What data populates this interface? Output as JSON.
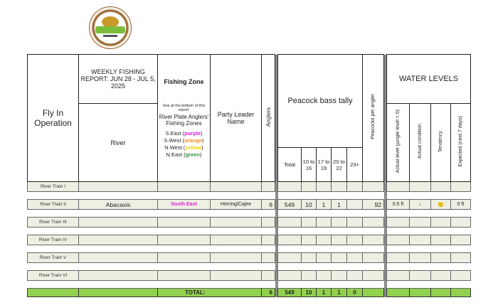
{
  "logo": {
    "text": "River Plate Anglers"
  },
  "header": {
    "fly_in": "Fly In Operation",
    "report_title": "WEEKLY FISHING REPORT: JUN 28 - JUL 5, 2025",
    "river": "River",
    "fishing_zone": "Fishing Zone",
    "zone_note": "See at the bottom of this report:",
    "zone_ref": "River Plate Anglers' Fishing Zones",
    "zones": [
      {
        "name": "S.East",
        "color_name": "purple",
        "color": "#e020e0"
      },
      {
        "name": "S.West",
        "color_name": "orange",
        "color": "#f08c28"
      },
      {
        "name": "N.West",
        "color_name": "yellow",
        "color": "#f0d000"
      },
      {
        "name": "N.East",
        "color_name": "green",
        "color": "#2a9a3a"
      }
    ],
    "party_leader": "Party Leader Name",
    "anglers": "Anglers",
    "tally": "Peacock bass tally",
    "tally_cols": [
      "Total",
      "10 to 16",
      "17 to 19",
      "20 to 22",
      "23+"
    ],
    "per_angler": "Peacocks per angler",
    "water_levels": "WATER LEVELS",
    "water_cols": [
      "Actual level (jungle level = 0)",
      "Actual condition",
      "Tendency",
      "Expected (next 7 days)"
    ]
  },
  "rows": [
    {
      "op": "River Train  I",
      "river": "",
      "zone": "",
      "leader": "",
      "anglers": "",
      "total": "",
      "c1": "",
      "c2": "",
      "c3": "",
      "c4": "",
      "per": "",
      "level": "",
      "cond": "",
      "tend": "",
      "exp": ""
    },
    {
      "op": "River Train  II",
      "river": "Abacaxis",
      "zone": "South East",
      "leader": "Herring/Cajee",
      "anglers": "6",
      "total": "549",
      "c1": "10",
      "c2": "1",
      "c3": "1",
      "c4": "",
      "per": "92",
      "level": "0.5 ft",
      "cond": "↓",
      "tend": "🙂",
      "exp": "0 ft"
    },
    {
      "op": "River Train  III",
      "river": "",
      "zone": "",
      "leader": "",
      "anglers": "",
      "total": "",
      "c1": "",
      "c2": "",
      "c3": "",
      "c4": "",
      "per": "",
      "level": "",
      "cond": "",
      "tend": "",
      "exp": ""
    },
    {
      "op": "River Train  IV",
      "river": "",
      "zone": "",
      "leader": "",
      "anglers": "",
      "total": "",
      "c1": "",
      "c2": "",
      "c3": "",
      "c4": "",
      "per": "",
      "level": "",
      "cond": "",
      "tend": "",
      "exp": ""
    },
    {
      "op": "River Train  V",
      "river": "",
      "zone": "",
      "leader": "",
      "anglers": "",
      "total": "",
      "c1": "",
      "c2": "",
      "c3": "",
      "c4": "",
      "per": "",
      "level": "",
      "cond": "",
      "tend": "",
      "exp": ""
    },
    {
      "op": "River Train  VI",
      "river": "",
      "zone": "",
      "leader": "",
      "anglers": "",
      "total": "",
      "c1": "",
      "c2": "",
      "c3": "",
      "c4": "",
      "per": "",
      "level": "",
      "cond": "",
      "tend": "",
      "exp": ""
    }
  ],
  "zone_color": "#e020e0",
  "total": {
    "label": "TOTAL:",
    "anglers": "6",
    "total": "549",
    "c1": "10",
    "c2": "1",
    "c3": "1",
    "c4": "0"
  },
  "colors": {
    "row_bg": "#ecefe1",
    "total_bg": "#92d050"
  }
}
